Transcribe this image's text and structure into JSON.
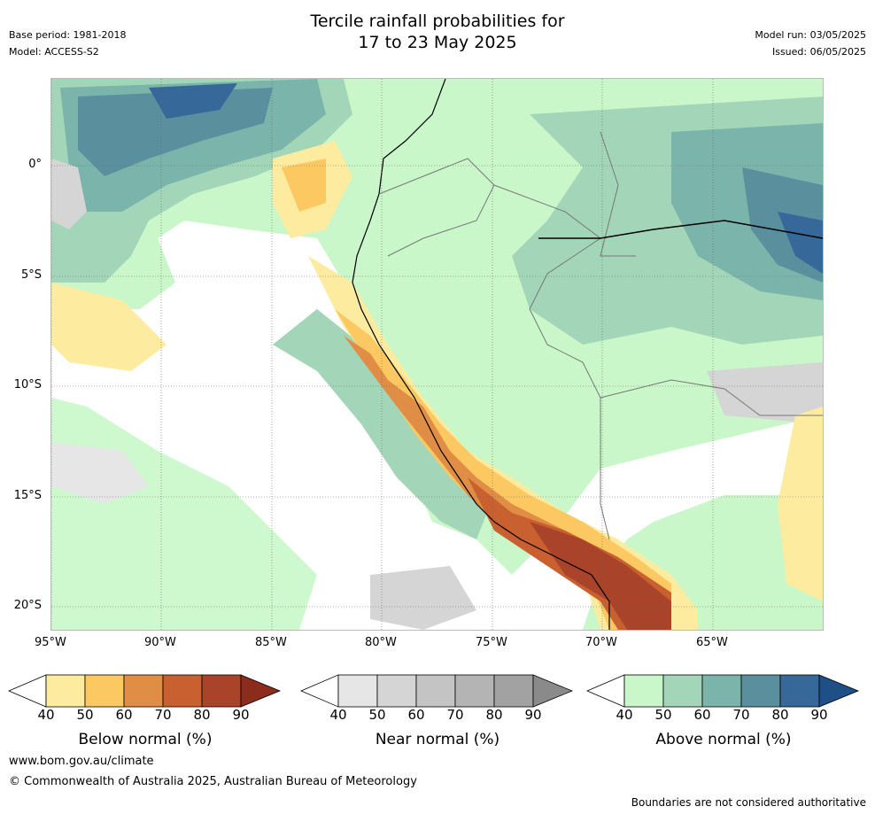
{
  "header": {
    "base_period": "Base period: 1981-2018",
    "model": "Model: ACCESS-S2",
    "title_line1": "Tercile rainfall probabilities for",
    "title_line2": "17 to 23 May 2025",
    "model_run": "Model run: 03/05/2025",
    "issued": "Issued: 06/05/2025"
  },
  "map": {
    "lat_labels": [
      "0°",
      "5°S",
      "10°S",
      "15°S",
      "20°S"
    ],
    "lon_labels": [
      "95°W",
      "90°W",
      "85°W",
      "80°W",
      "75°W",
      "70°W",
      "65°W"
    ]
  },
  "legends": [
    {
      "label": "Below normal (%)",
      "ticks": [
        "40",
        "50",
        "60",
        "70",
        "80",
        "90"
      ],
      "colors": [
        "#ffffff",
        "#fdeba0",
        "#fcc862",
        "#e08e45",
        "#c96030",
        "#a9442a",
        "#8b2c1c"
      ]
    },
    {
      "label": "Near normal (%)",
      "ticks": [
        "40",
        "50",
        "60",
        "70",
        "80",
        "90"
      ],
      "colors": [
        "#ffffff",
        "#e6e6e6",
        "#d5d5d5",
        "#c4c4c4",
        "#b4b4b4",
        "#a2a2a2",
        "#8a8a8a"
      ]
    },
    {
      "label": "Above normal (%)",
      "ticks": [
        "40",
        "50",
        "60",
        "70",
        "80",
        "90"
      ],
      "colors": [
        "#ffffff",
        "#c9f7c9",
        "#a3d6b8",
        "#7bb4aa",
        "#5a909e",
        "#36689a",
        "#1e4f86"
      ]
    }
  ],
  "footer": {
    "website": "www.bom.gov.au/climate",
    "copyright": "© Commonwealth of Australia 2025, Australian Bureau of Meteorology",
    "disclaimer": "Boundaries are not considered authoritative"
  }
}
